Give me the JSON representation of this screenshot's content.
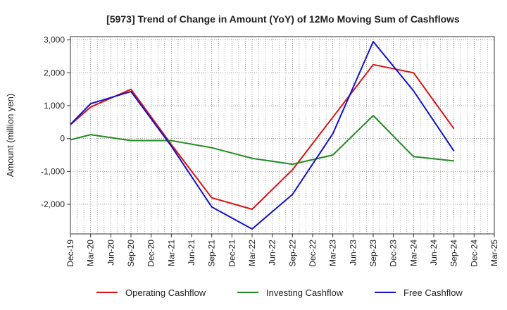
{
  "chart_data": {
    "type": "line",
    "title": "[5973]  Trend of Change in Amount (YoY) of 12Mo Moving Sum of Cashflows",
    "xlabel": "",
    "ylabel": "Amount (million yen)",
    "ylim": [
      -2900,
      3100
    ],
    "yticks": [
      3000,
      2000,
      1000,
      0,
      -1000,
      -2000
    ],
    "ytick_labels": [
      "3,000",
      "2,000",
      "1,000",
      "0",
      "-1,000",
      "-2,000"
    ],
    "categories": [
      "Dec-19",
      "Mar-20",
      "Jun-20",
      "Sep-20",
      "Dec-20",
      "Mar-21",
      "Jun-21",
      "Sep-21",
      "Dec-21",
      "Mar-22",
      "Jun-22",
      "Sep-22",
      "Dec-22",
      "Mar-23",
      "Jun-23",
      "Sep-23",
      "Dec-23",
      "Mar-24",
      "Jun-24",
      "Sep-24",
      "Dec-24",
      "Mar-25"
    ],
    "grid": true,
    "legend_position": "bottom",
    "series": [
      {
        "name": "Operating Cashflow",
        "color": "#dd1111",
        "values": [
          420,
          960,
          null,
          1500,
          null,
          -180,
          null,
          -1800,
          null,
          -2150,
          null,
          -950,
          null,
          650,
          null,
          2250,
          null,
          2000,
          null,
          300,
          null,
          null
        ]
      },
      {
        "name": "Investing Cashflow",
        "color": "#228b22",
        "values": [
          -40,
          120,
          null,
          -60,
          null,
          -60,
          null,
          -280,
          null,
          -600,
          null,
          -780,
          null,
          -500,
          null,
          700,
          null,
          -550,
          null,
          -680,
          null,
          null
        ]
      },
      {
        "name": "Free Cashflow",
        "color": "#1111cc",
        "values": [
          430,
          1060,
          null,
          1430,
          null,
          -230,
          null,
          -2080,
          null,
          -2750,
          null,
          -1700,
          null,
          150,
          null,
          2950,
          null,
          1450,
          null,
          -380,
          null,
          null
        ]
      }
    ]
  }
}
